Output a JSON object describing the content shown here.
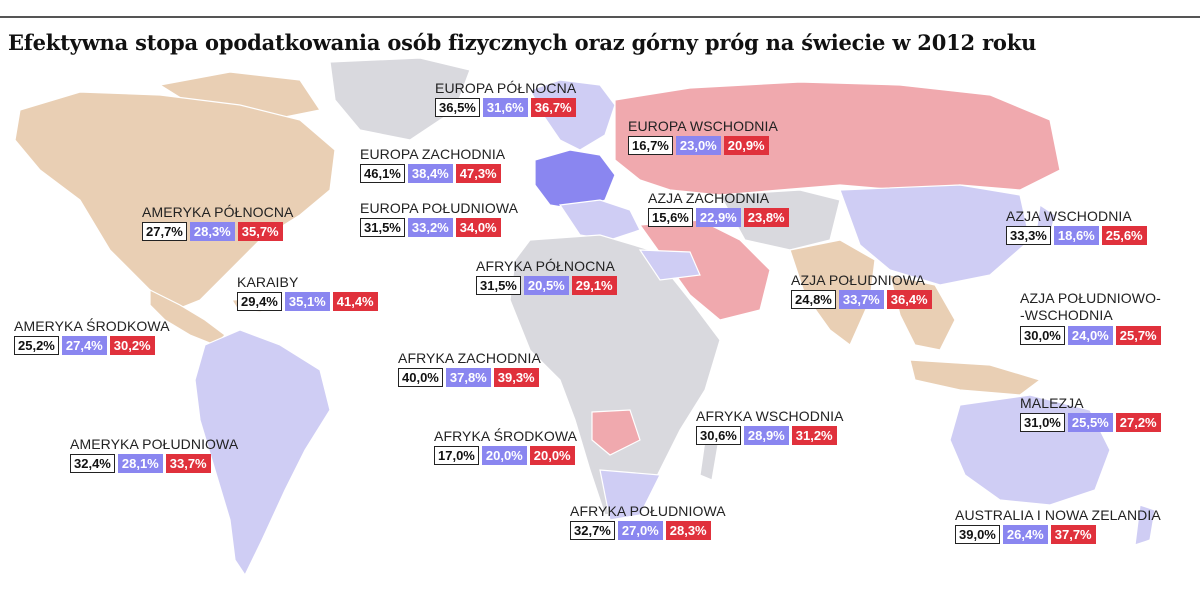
{
  "title": "Efektywna stopa opodatkowania osób fizycznych oraz górny próg na świecie w 2012 roku",
  "colors": {
    "land_grey": "#d9d9de",
    "america_tan": "#e9cfb4",
    "purple_light": "#cfcdf4",
    "pink": "#f0a9ae",
    "value_purple": "#8a86f0",
    "value_red": "#e0313c"
  },
  "regions": [
    {
      "name": "EUROPA PÓŁNOCNA",
      "values": [
        "36,5%",
        "31,6%",
        "36,7%"
      ]
    },
    {
      "name": "EUROPA WSCHODNIA",
      "values": [
        "16,7%",
        "23,0%",
        "20,9%"
      ]
    },
    {
      "name": "EUROPA ZACHODNIA",
      "values": [
        "46,1%",
        "38,4%",
        "47,3%"
      ]
    },
    {
      "name": "AMERYKA PÓŁNOCNA",
      "values": [
        "27,7%",
        "28,3%",
        "35,7%"
      ]
    },
    {
      "name": "EUROPA POŁUDNIOWA",
      "values": [
        "31,5%",
        "33,2%",
        "34,0%"
      ]
    },
    {
      "name": "AZJA ZACHODNIA",
      "values": [
        "15,6%",
        "22,9%",
        "23,8%"
      ]
    },
    {
      "name": "AZJA WSCHODNIA",
      "values": [
        "33,3%",
        "18,6%",
        "25,6%"
      ]
    },
    {
      "name": "AFRYKA PÓŁNOCNA",
      "values": [
        "31,5%",
        "20,5%",
        "29,1%"
      ]
    },
    {
      "name": "KARAIBY",
      "values": [
        "29,4%",
        "35,1%",
        "41,4%"
      ]
    },
    {
      "name": "AZJA POŁUDNIOWA",
      "values": [
        "24,8%",
        "33,7%",
        "36,4%"
      ]
    },
    {
      "name": "AZJA POŁUDNIOWO-\n-WSCHODNIA",
      "values": [
        "30,0%",
        "24,0%",
        "25,7%"
      ]
    },
    {
      "name": "AMERYKA ŚRODKOWA",
      "values": [
        "25,2%",
        "27,4%",
        "30,2%"
      ]
    },
    {
      "name": "AFRYKA ZACHODNIA",
      "values": [
        "40,0%",
        "37,8%",
        "39,3%"
      ]
    },
    {
      "name": "MALEZJA",
      "values": [
        "31,0%",
        "25,5%",
        "27,2%"
      ]
    },
    {
      "name": "AFRYKA WSCHODNIA",
      "values": [
        "30,6%",
        "28,9%",
        "31,2%"
      ]
    },
    {
      "name": "AFRYKA ŚRODKOWA",
      "values": [
        "17,0%",
        "20,0%",
        "20,0%"
      ]
    },
    {
      "name": "AMERYKA POŁUDNIOWA",
      "values": [
        "32,4%",
        "28,1%",
        "33,7%"
      ]
    },
    {
      "name": "AFRYKA POŁUDNIOWA",
      "values": [
        "32,7%",
        "27,0%",
        "28,3%"
      ]
    },
    {
      "name": "AUSTRALIA I NOWA ZELANDIA",
      "values": [
        "39,0%",
        "26,4%",
        "37,7%"
      ]
    }
  ]
}
